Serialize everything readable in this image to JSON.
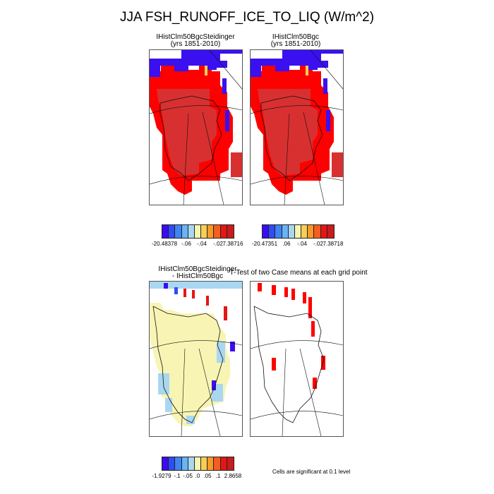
{
  "title": "JJA FSH_RUNOFF_ICE_TO_LIQ (W/m^2)",
  "panels": {
    "top_left": {
      "name": "IHistClm50BgcSteidinger",
      "subtitle": "(yrs 1851-2010)"
    },
    "top_right": {
      "name": "IHistClm50Bgc",
      "subtitle": "(yrs 1851-2010)"
    },
    "bottom_left": {
      "line1": "IHistClm50BgcSteidinger",
      "line2": "- IHistClm50Bgc"
    },
    "bottom_right": {
      "title": "T-Test of two Case means at each grid point"
    }
  },
  "colorbars": {
    "colors": [
      "#3a0cf0",
      "#2f4cf5",
      "#3f84f3",
      "#6ab4f2",
      "#a9d7f2",
      "#f5f5b0",
      "#f7cf55",
      "#f79a2a",
      "#f25f1f",
      "#e71515",
      "#c91c1c"
    ],
    "top_left_ticks": [
      "-20.48378",
      "-.06",
      "-.04",
      "-.02",
      "7.38716"
    ],
    "top_right_ticks": [
      "-20.47351",
      ".06",
      "-.04",
      "-.02",
      "7.38718"
    ],
    "bottom_ticks": [
      "-1.9279",
      "-.1",
      "-.05",
      ".0",
      ".05",
      ".1",
      "2.8658"
    ]
  },
  "note": "Cells are significant at 0.1 level",
  "colors": {
    "red": "#ff0000",
    "dark_red": "#d83030",
    "blue": "#3a10f0",
    "yellow": "#f8f4b4",
    "light_blue": "#a9d7f2"
  }
}
